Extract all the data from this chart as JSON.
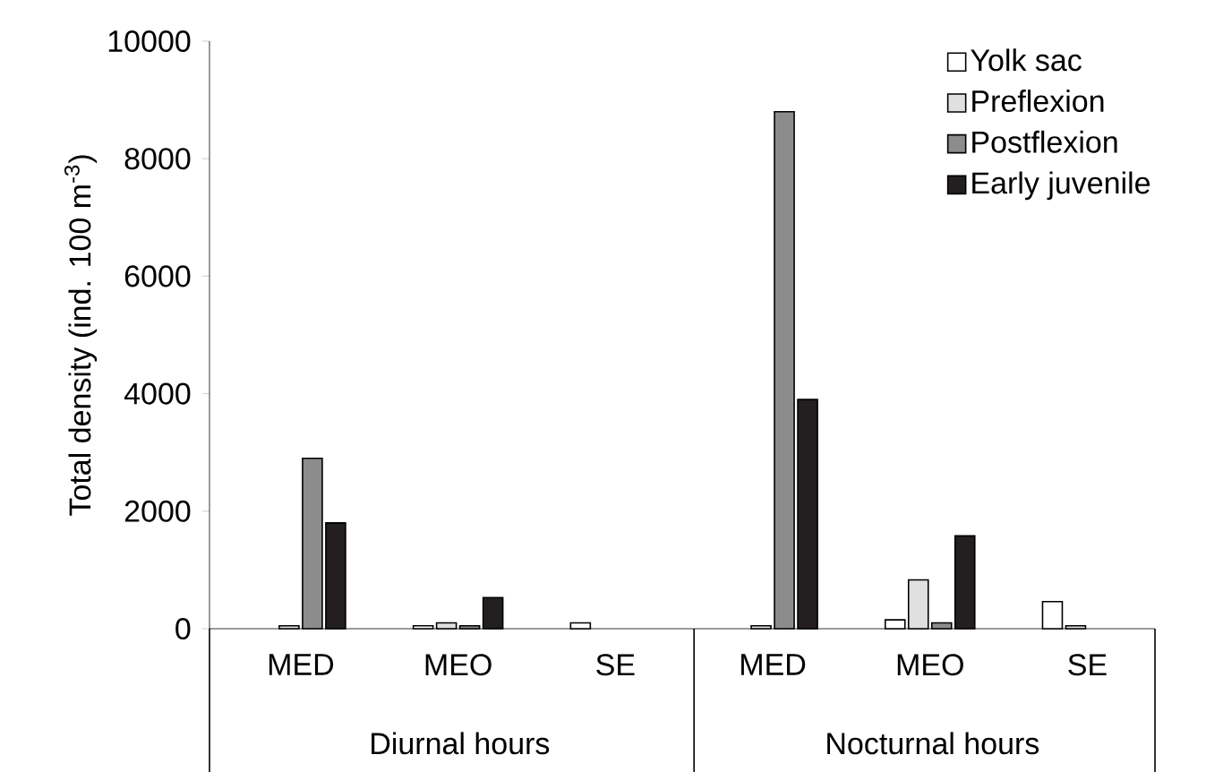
{
  "chart_data": {
    "type": "bar",
    "ylabel": "Total density (ind. 100 m$^{-3}$)",
    "categories": [
      "MED",
      "MEO",
      "SE",
      "MED",
      "MEO",
      "SE"
    ],
    "series": [
      {
        "name": "Yolk sac",
        "color": "#ffffff",
        "values": [
          null,
          50,
          100,
          null,
          150,
          460
        ]
      },
      {
        "name": "Preflexion",
        "color": "#e0e0e0",
        "values": [
          50,
          100,
          null,
          50,
          830,
          50
        ]
      },
      {
        "name": "Postflexion",
        "color": "#8c8c8c",
        "values": [
          2900,
          50,
          null,
          8800,
          100,
          null
        ]
      },
      {
        "name": "Early juvenile",
        "color": "#231f20",
        "values": [
          1800,
          530,
          null,
          3900,
          1580,
          null
        ]
      }
    ],
    "ylim": [
      0,
      10000
    ],
    "yticks": [
      0,
      2000,
      4000,
      6000,
      8000,
      10000
    ],
    "legend": "top right",
    "grid": false,
    "annotations": [
      "Diurnal hours",
      "Nocturnal hours"
    ]
  }
}
